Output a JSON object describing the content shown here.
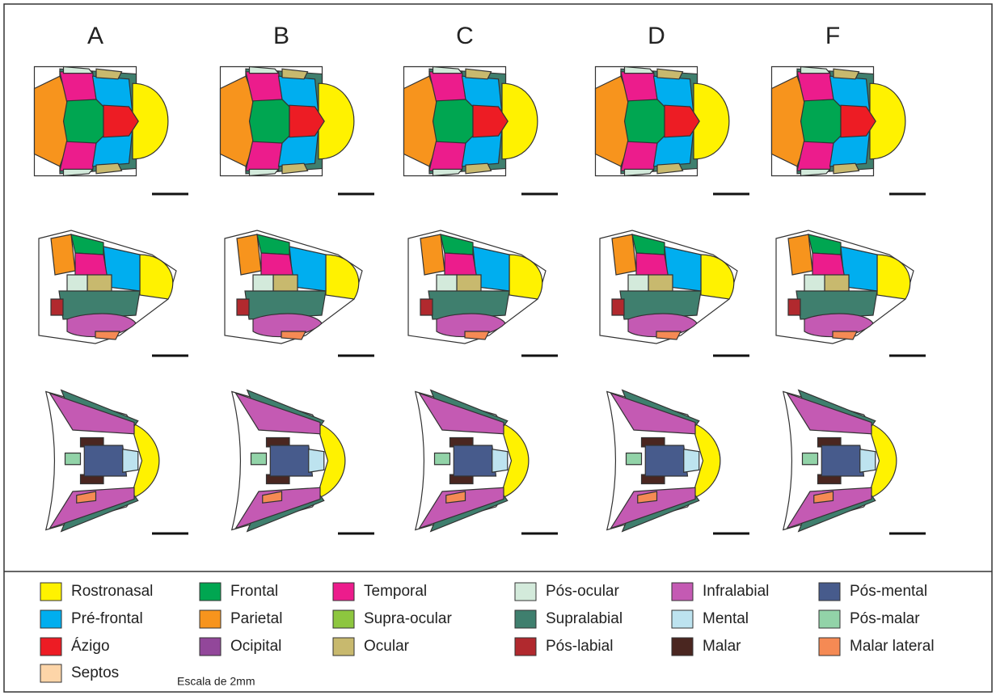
{
  "panels": [
    "A",
    "B",
    "C",
    "D",
    "F"
  ],
  "legend": {
    "columns": [
      [
        {
          "label": "Rostronasal",
          "color": "#fff200"
        },
        {
          "label": "Pré-frontal",
          "color": "#00aeef"
        },
        {
          "label": "Ázigo",
          "color": "#ed1c24"
        },
        {
          "label": "Septos",
          "color": "#fdd5a8"
        }
      ],
      [
        {
          "label": "Frontal",
          "color": "#00a651"
        },
        {
          "label": "Parietal",
          "color": "#f7941d"
        },
        {
          "label": "Ocipital",
          "color": "#92479a"
        }
      ],
      [
        {
          "label": "Temporal",
          "color": "#ec1c8c"
        },
        {
          "label": "Supra-ocular",
          "color": "#8dc63f"
        },
        {
          "label": "Ocular",
          "color": "#c8b96e"
        }
      ],
      [
        {
          "label": "Pós-ocular",
          "color": "#d3eadb"
        },
        {
          "label": "Supralabial",
          "color": "#3f7f6e"
        },
        {
          "label": "Pós-labial",
          "color": "#b1292e"
        }
      ],
      [
        {
          "label": "Infralabial",
          "color": "#c45ab3"
        },
        {
          "label": "Mental",
          "color": "#bde3ef"
        },
        {
          "label": "Malar",
          "color": "#4a2620"
        }
      ],
      [
        {
          "label": "Pós-mental",
          "color": "#475b8c"
        },
        {
          "label": "Pós-malar",
          "color": "#92d3a8"
        },
        {
          "label": "Malar lateral",
          "color": "#f58a54"
        }
      ]
    ]
  },
  "scale_note": "Escala de 2mm"
}
